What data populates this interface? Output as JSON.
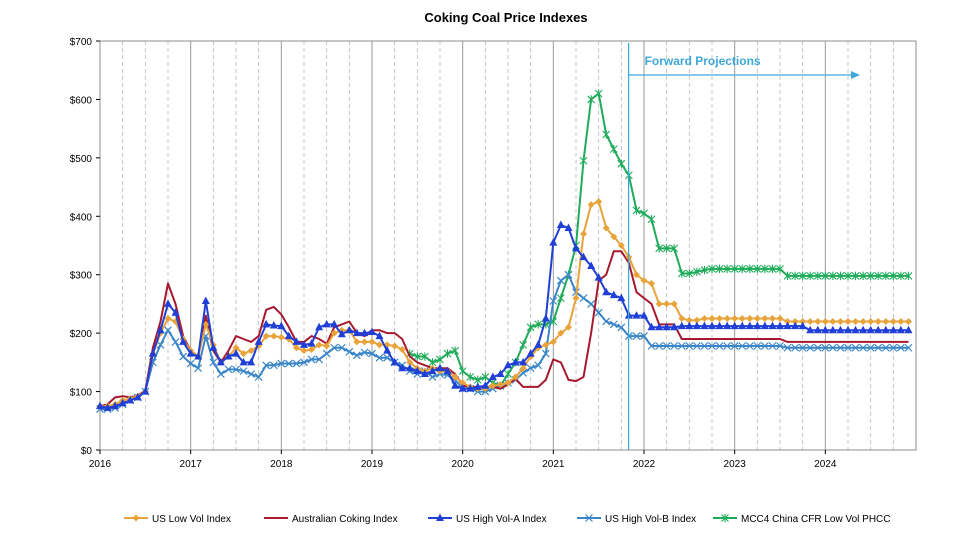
{
  "chart_data": {
    "type": "line",
    "title": "Coking Coal Price Indexes",
    "xlabel": "",
    "ylabel": "",
    "xlim": [
      2016.0,
      2025.0
    ],
    "ylim": [
      0,
      700
    ],
    "x_ticks": [
      "2016",
      "2017",
      "2018",
      "2019",
      "2020",
      "2021",
      "2022",
      "2023",
      "2024"
    ],
    "y_ticks": [
      "$0",
      "$100",
      "$200",
      "$300",
      "$400",
      "$500",
      "$600",
      "$700"
    ],
    "grid": {
      "vertical_major": true,
      "vertical_minor_dashed": true,
      "horizontal": false
    },
    "legend_position": "bottom",
    "annotation": {
      "text": "Forward Projections",
      "x": 2021.83
    },
    "x": [
      2016.0,
      2016.083,
      2016.167,
      2016.25,
      2016.333,
      2016.417,
      2016.5,
      2016.583,
      2016.667,
      2016.75,
      2016.833,
      2016.917,
      2017.0,
      2017.083,
      2017.167,
      2017.25,
      2017.333,
      2017.417,
      2017.5,
      2017.583,
      2017.667,
      2017.75,
      2017.833,
      2017.917,
      2018.0,
      2018.083,
      2018.167,
      2018.25,
      2018.333,
      2018.417,
      2018.5,
      2018.583,
      2018.667,
      2018.75,
      2018.833,
      2018.917,
      2019.0,
      2019.083,
      2019.167,
      2019.25,
      2019.333,
      2019.417,
      2019.5,
      2019.583,
      2019.667,
      2019.75,
      2019.833,
      2019.917,
      2020.0,
      2020.083,
      2020.167,
      2020.25,
      2020.333,
      2020.417,
      2020.5,
      2020.583,
      2020.667,
      2020.75,
      2020.833,
      2020.917,
      2021.0,
      2021.083,
      2021.167,
      2021.25,
      2021.333,
      2021.417,
      2021.5,
      2021.583,
      2021.667,
      2021.75,
      2021.833,
      2021.917,
      2022.0,
      2022.083,
      2022.167,
      2022.25,
      2022.333,
      2022.417,
      2022.5,
      2022.583,
      2022.667,
      2022.75,
      2022.833,
      2022.917,
      2023.0,
      2023.083,
      2023.167,
      2023.25,
      2023.333,
      2023.417,
      2023.5,
      2023.583,
      2023.667,
      2023.75,
      2023.833,
      2023.917,
      2024.0,
      2024.083,
      2024.167,
      2024.25,
      2024.333,
      2024.417,
      2024.5,
      2024.583,
      2024.667,
      2024.75,
      2024.833,
      2024.917
    ],
    "series": [
      {
        "name": "US Low Vol Index",
        "color": "#e8a33a",
        "marker": "diamond",
        "values": [
          75,
          75,
          78,
          85,
          88,
          92,
          100,
          165,
          200,
          225,
          220,
          190,
          170,
          160,
          215,
          180,
          150,
          160,
          175,
          165,
          170,
          178,
          195,
          195,
          193,
          190,
          175,
          170,
          172,
          180,
          178,
          200,
          205,
          205,
          185,
          185,
          185,
          180,
          180,
          178,
          172,
          150,
          140,
          135,
          140,
          135,
          135,
          125,
          115,
          108,
          105,
          105,
          110,
          112,
          115,
          125,
          140,
          160,
          175,
          180,
          185,
          200,
          210,
          260,
          370,
          420,
          425,
          380,
          365,
          350,
          330,
          300,
          290,
          285,
          250,
          250,
          250,
          225,
          222,
          222,
          225,
          225,
          225,
          225,
          225,
          225,
          225,
          225,
          225,
          225,
          225,
          220,
          220,
          220,
          220,
          220,
          220,
          220,
          220,
          220,
          220,
          220,
          220,
          220,
          220,
          220,
          220,
          220
        ]
      },
      {
        "name": "Australian Coking Index",
        "color": "#a6192e",
        "marker": "none",
        "values": [
          75,
          78,
          90,
          92,
          90,
          93,
          102,
          175,
          220,
          285,
          250,
          195,
          170,
          160,
          230,
          170,
          150,
          170,
          195,
          190,
          185,
          195,
          240,
          245,
          232,
          210,
          185,
          185,
          195,
          190,
          182,
          210,
          215,
          220,
          200,
          195,
          205,
          205,
          200,
          200,
          190,
          160,
          150,
          145,
          140,
          140,
          140,
          130,
          110,
          108,
          108,
          108,
          108,
          105,
          112,
          122,
          108,
          108,
          108,
          120,
          155,
          150,
          120,
          118,
          125,
          200,
          290,
          300,
          340,
          340,
          320,
          270,
          260,
          250,
          215,
          215,
          215,
          190,
          190,
          190,
          190,
          190,
          190,
          190,
          190,
          190,
          190,
          190,
          190,
          190,
          190,
          185,
          185,
          185,
          185,
          185,
          185,
          185,
          185,
          185,
          185,
          185,
          185,
          185,
          185,
          185,
          185,
          185
        ]
      },
      {
        "name": "US High Vol-A Index",
        "color": "#1f3fd6",
        "marker": "triangle",
        "values": [
          75,
          72,
          75,
          80,
          85,
          90,
          100,
          165,
          205,
          250,
          235,
          185,
          165,
          160,
          255,
          175,
          150,
          160,
          165,
          150,
          150,
          185,
          215,
          213,
          212,
          195,
          185,
          180,
          182,
          210,
          215,
          215,
          198,
          205,
          200,
          200,
          202,
          195,
          170,
          150,
          140,
          140,
          135,
          130,
          135,
          140,
          135,
          110,
          105,
          105,
          108,
          110,
          125,
          130,
          145,
          150,
          150,
          165,
          180,
          225,
          355,
          385,
          380,
          345,
          330,
          315,
          295,
          270,
          265,
          260,
          230,
          230,
          230,
          210,
          210,
          210,
          210,
          212,
          212,
          212,
          212,
          212,
          212,
          212,
          212,
          212,
          212,
          212,
          212,
          212,
          212,
          212,
          212,
          212,
          205,
          205,
          205,
          205,
          205,
          205,
          205,
          205,
          205,
          205,
          205,
          205,
          205,
          205
        ]
      },
      {
        "name": "US High Vol-B Index",
        "color": "#3a86c8",
        "marker": "x",
        "values": [
          70,
          70,
          72,
          78,
          85,
          90,
          100,
          150,
          180,
          205,
          185,
          160,
          148,
          140,
          195,
          150,
          130,
          138,
          138,
          135,
          130,
          125,
          145,
          145,
          148,
          148,
          148,
          150,
          155,
          155,
          165,
          175,
          175,
          168,
          162,
          167,
          165,
          158,
          158,
          150,
          145,
          135,
          130,
          135,
          125,
          130,
          128,
          120,
          105,
          105,
          100,
          100,
          105,
          110,
          115,
          120,
          132,
          140,
          145,
          165,
          255,
          290,
          300,
          270,
          260,
          250,
          235,
          220,
          215,
          210,
          195,
          195,
          195,
          178,
          178,
          178,
          178,
          178,
          178,
          178,
          178,
          178,
          178,
          178,
          178,
          178,
          178,
          178,
          178,
          178,
          178,
          175,
          175,
          175,
          175,
          175,
          175,
          175,
          175,
          175,
          175,
          175,
          175,
          175,
          175,
          175,
          175,
          175
        ]
      },
      {
        "name": "MCC4 China CFR Low Vol PHCC",
        "color": "#1fab5a",
        "marker": "star",
        "values": [
          null,
          null,
          null,
          null,
          null,
          null,
          null,
          null,
          null,
          null,
          null,
          null,
          null,
          null,
          null,
          null,
          null,
          null,
          null,
          null,
          null,
          null,
          null,
          null,
          null,
          null,
          null,
          null,
          null,
          null,
          null,
          null,
          null,
          null,
          null,
          null,
          null,
          null,
          null,
          null,
          null,
          165,
          160,
          160,
          150,
          155,
          165,
          170,
          135,
          125,
          120,
          125,
          115,
          110,
          130,
          150,
          180,
          210,
          215,
          215,
          220,
          260,
          300,
          350,
          495,
          600,
          610,
          540,
          515,
          490,
          470,
          410,
          405,
          395,
          345,
          345,
          345,
          302,
          302,
          305,
          308,
          310,
          310,
          310,
          310,
          310,
          310,
          310,
          310,
          310,
          310,
          298,
          298,
          298,
          298,
          298,
          298,
          298,
          298,
          298,
          298,
          298,
          298,
          298,
          298,
          298,
          298,
          298
        ]
      }
    ]
  }
}
